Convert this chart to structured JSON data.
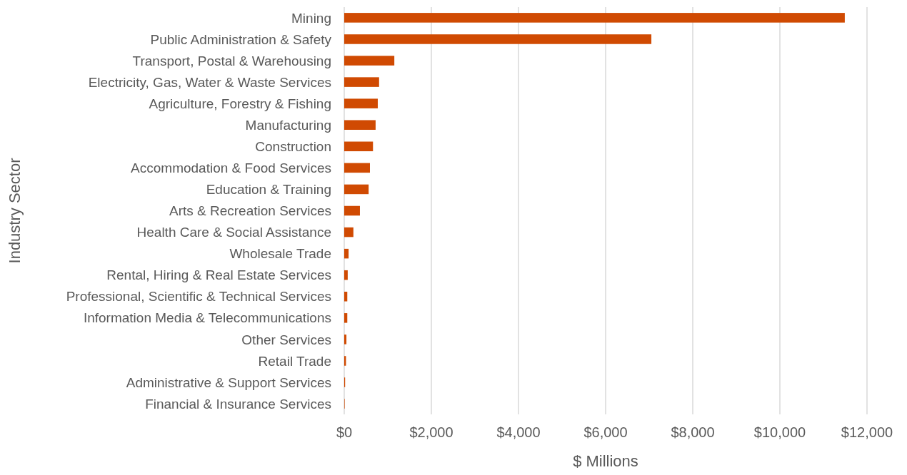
{
  "chart_data": {
    "type": "bar",
    "orientation": "horizontal",
    "xlabel": "$ Millions",
    "ylabel": "Industry Sector",
    "categories": [
      "Mining",
      "Public Administration & Safety",
      "Transport, Postal & Warehousing",
      "Electricity, Gas, Water & Waste Services",
      "Agriculture, Forestry & Fishing",
      "Manufacturing",
      "Construction",
      "Accommodation & Food Services",
      "Education & Training",
      "Arts & Recreation Services",
      "Health Care & Social Assistance",
      "Wholesale Trade",
      "Rental, Hiring & Real Estate Services",
      "Professional, Scientific & Technical Services",
      "Information Media & Telecommunications",
      "Other Services",
      "Retail Trade",
      "Administrative & Support Services",
      "Financial & Insurance Services"
    ],
    "values": [
      11490,
      7050,
      1150,
      800,
      770,
      720,
      660,
      590,
      560,
      360,
      210,
      100,
      80,
      70,
      70,
      50,
      40,
      20,
      10
    ],
    "color": "#d04a02",
    "xlim": [
      0,
      12000
    ],
    "xticks": [
      {
        "value": 0,
        "label": "$0"
      },
      {
        "value": 2000,
        "label": "$2,000"
      },
      {
        "value": 4000,
        "label": "$4,000"
      },
      {
        "value": 6000,
        "label": "$6,000"
      },
      {
        "value": 8000,
        "label": "$8,000"
      },
      {
        "value": 10000,
        "label": "$10,000"
      },
      {
        "value": 12000,
        "label": "$12,000"
      }
    ],
    "grid": "x"
  }
}
